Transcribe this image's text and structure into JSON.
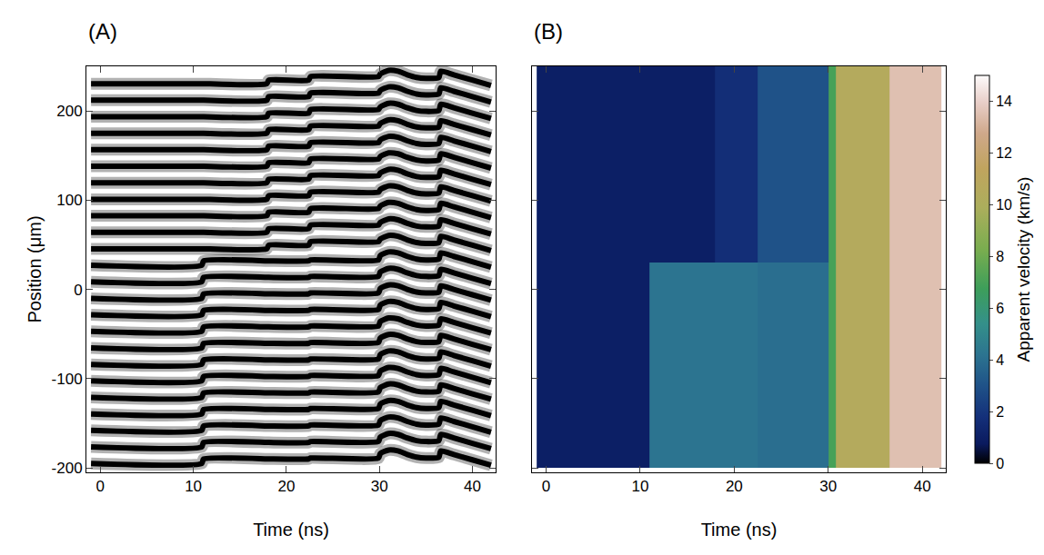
{
  "chart_data": [
    {
      "type": "line",
      "title": "(A)",
      "xlabel": "Time (ns)",
      "ylabel": "Position (μm)",
      "xlim": [
        -1.5,
        42.5
      ],
      "xticks": [
        0,
        10,
        20,
        30,
        40
      ],
      "ylim": [
        -205,
        250
      ],
      "yticks": [
        -200,
        -100,
        0,
        100,
        200
      ],
      "color": "#000000",
      "x": [
        -1,
        10.9,
        11.1,
        17.9,
        18.1,
        22.4,
        22.6,
        29.9,
        30.1,
        31,
        32,
        33,
        34,
        35,
        36.4,
        36.6,
        38,
        40,
        42
      ],
      "fringe_positions": [
        -195,
        -176.5,
        -158,
        -139.5,
        -121,
        -102.5,
        -84,
        -65.5,
        -47,
        -28.5,
        -10,
        8.5,
        27,
        45.5,
        64,
        82.5,
        101,
        119.5,
        138,
        156.5,
        175,
        193.5,
        212,
        230.5
      ],
      "split": 30,
      "shifts": [
        [
          0,
          0,
          5,
          5,
          5,
          5,
          6,
          6,
          11,
          15,
          14,
          10,
          7,
          6,
          7,
          14,
          10,
          4,
          -2
        ],
        [
          0,
          0,
          0,
          0,
          4,
          4,
          8,
          8,
          11,
          15,
          14,
          10,
          7,
          6,
          7,
          14,
          10,
          4,
          -2
        ]
      ]
    },
    {
      "type": "heatmap",
      "title": "(B)",
      "xlabel": "Time (ns)",
      "xlim": [
        -1.5,
        42.5
      ],
      "xticks": [
        0,
        10,
        20,
        30,
        40
      ],
      "ylim": [
        -205,
        250
      ],
      "yticks": [
        -200,
        -100,
        0,
        100,
        200
      ],
      "tick_labels": "x",
      "x": [
        -1,
        11,
        18,
        22.5,
        30,
        30.8,
        36.5,
        42
      ],
      "y": [
        -200,
        30,
        250
      ],
      "z": [
        [
          1.0,
          4.2,
          4.2,
          4.0,
          7.0,
          10.5,
          13.5
        ],
        [
          1.0,
          1.0,
          1.7,
          3.0,
          7.0,
          10.5,
          13.5
        ]
      ],
      "colorbar_label": "Apparent velocity (km/s)",
      "zlim": [
        0,
        15
      ],
      "zticks": [
        0,
        2,
        4,
        6,
        8,
        10,
        12,
        14
      ]
    }
  ]
}
